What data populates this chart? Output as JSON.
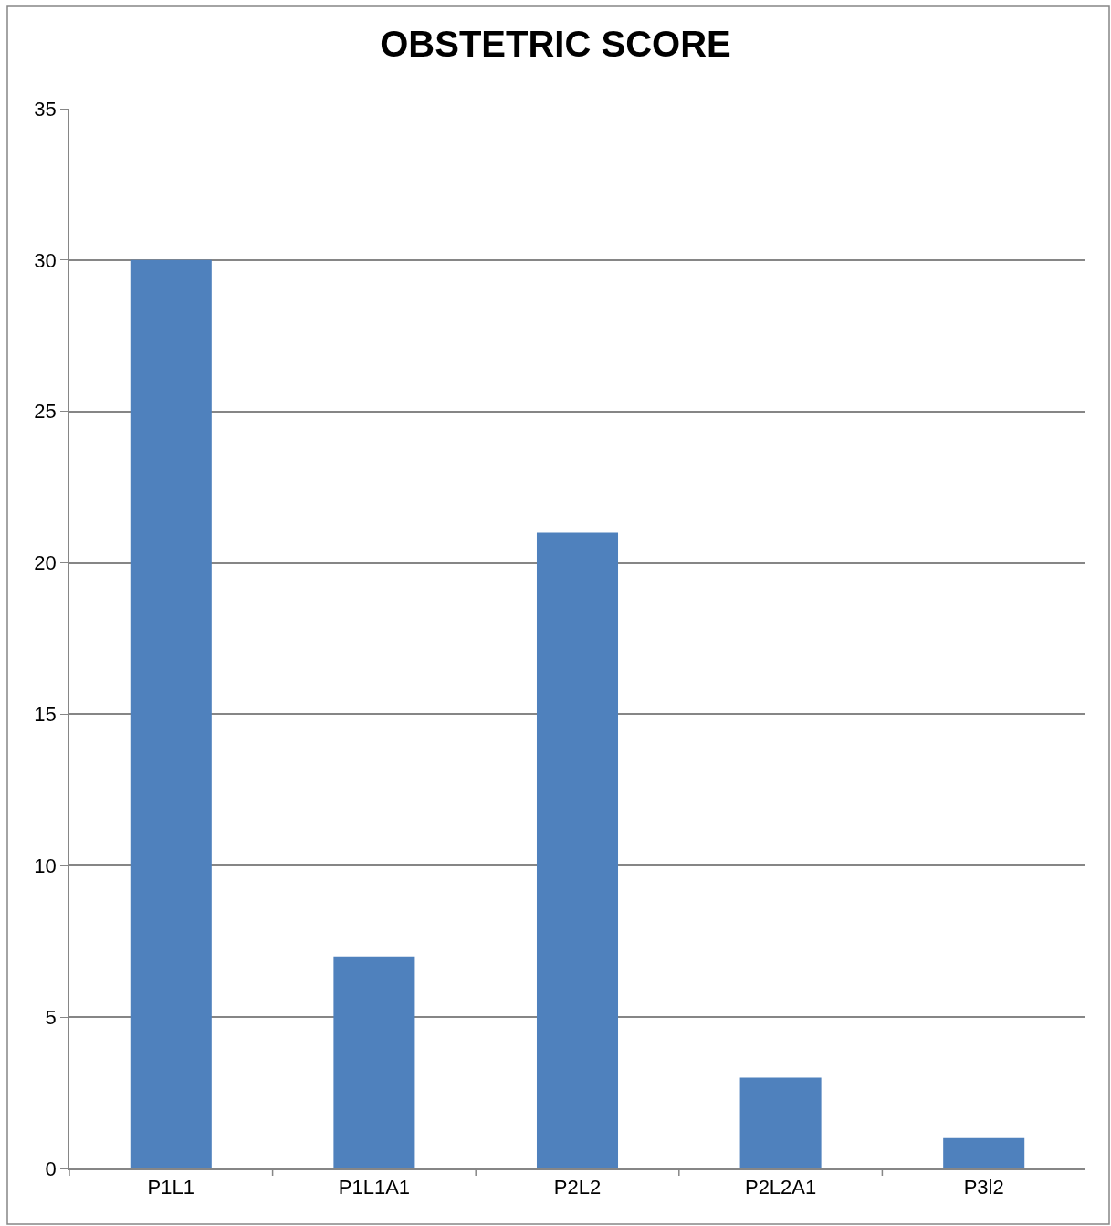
{
  "chart_data": {
    "type": "bar",
    "title": "OBSTETRIC SCORE",
    "categories": [
      "P1L1",
      "P1L1A1",
      "P2L2",
      "P2L2A1",
      "P3l2"
    ],
    "values": [
      30,
      7,
      21,
      3,
      1
    ],
    "color": "#4f81bd",
    "ylim": [
      0,
      35
    ],
    "yticks": [
      0,
      5,
      10,
      15,
      20,
      25,
      30,
      35
    ],
    "grid": "y",
    "legend": false
  }
}
